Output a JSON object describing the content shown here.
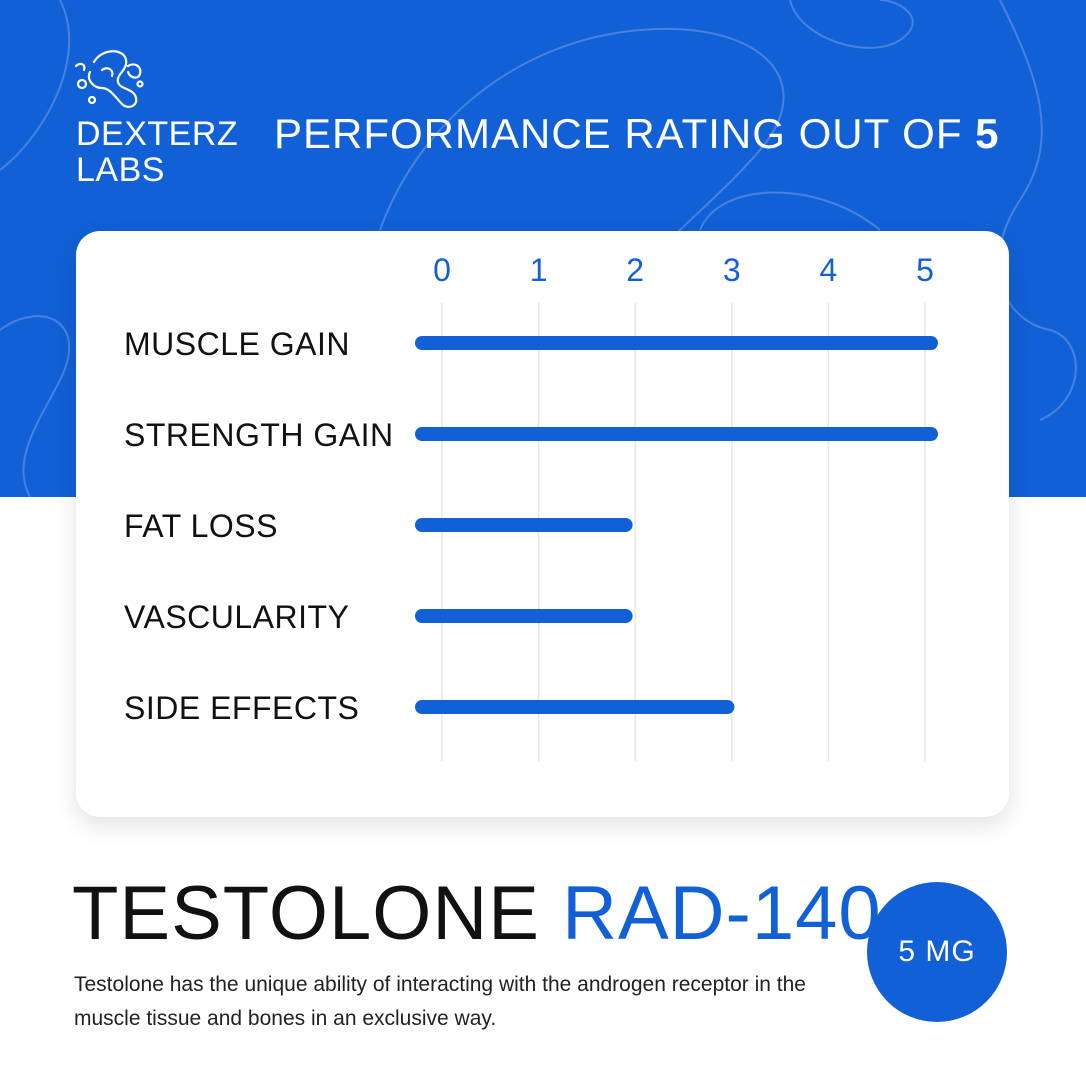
{
  "brand": {
    "line1": "DEXTERZ",
    "line2": "LABS"
  },
  "heading": {
    "text": "PERFORMANCE RATING OUT OF ",
    "highlight": "5"
  },
  "product": {
    "name_dark": "TESTOLONE",
    "name_accent": "RAD-140",
    "description": "Testolone has the unique ability of interacting with the androgen receptor in the muscle tissue and bones in an exclusive way.",
    "dose": "5 MG"
  },
  "colors": {
    "accent": "#1260d6",
    "text": "#111111",
    "grid": "#e6e6e6",
    "card": "#ffffff"
  },
  "chart_data": {
    "type": "bar",
    "orientation": "horizontal",
    "categories": [
      "MUSCLE GAIN",
      "STRENGTH GAIN",
      "FAT LOSS",
      "VASCULARITY",
      "SIDE EFFECTS"
    ],
    "values": [
      5,
      5,
      2,
      2,
      3
    ],
    "xlim": [
      0,
      5
    ],
    "xticks": [
      "0",
      "1",
      "2",
      "3",
      "4",
      "5"
    ],
    "axis_position": "top",
    "grid": true,
    "title": "",
    "xlabel": "",
    "ylabel": ""
  }
}
